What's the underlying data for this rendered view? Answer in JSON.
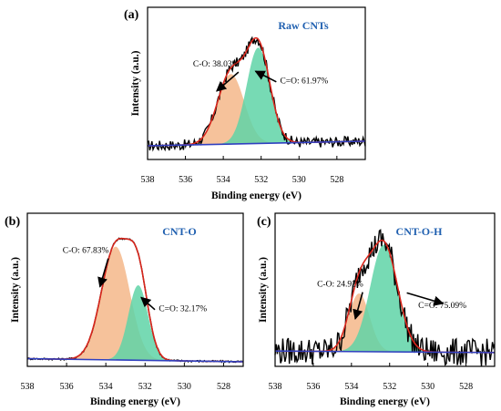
{
  "chart_data": [
    {
      "type": "line",
      "panel_label": "(a)",
      "title": "Raw CNTs",
      "xlabel": "Binding energy (eV)",
      "ylabel": "Intensity (a.u.)",
      "xlim": [
        538,
        526.5
      ],
      "x_reversed": true,
      "xticks": [
        538,
        536,
        534,
        532,
        530,
        528
      ],
      "grid": false,
      "colors": {
        "title": "#2060b0",
        "raw": "#000000",
        "fit": "#d9261c",
        "c_o_peak": "#f5b78a",
        "c_eq_o_peak": "#5fd3a7",
        "baseline": "#3040c0"
      },
      "baseline": {
        "x": [
          538,
          526.5
        ],
        "y": [
          0.09,
          0.12
        ]
      },
      "peaks": [
        {
          "label": "C-O: 38.03%",
          "center": 533.6,
          "sigma": 0.7,
          "height": 0.46
        },
        {
          "label": "C=O: 61.97%",
          "center": 532.15,
          "sigma": 0.62,
          "height": 0.63
        }
      ],
      "noise": 0.035,
      "annotations": [
        {
          "text": "C-O: 38.03%",
          "at": [
            535.6,
            0.61
          ],
          "arrow_to": [
            534.35,
            0.45
          ]
        },
        {
          "text": "C=O: 61.97%",
          "at": [
            531.0,
            0.5
          ],
          "arrow_from": [
            531.2,
            0.51
          ],
          "arrow_to": [
            532.3,
            0.58
          ]
        }
      ]
    },
    {
      "type": "line",
      "panel_label": "(b)",
      "title": "CNT-O",
      "xlabel": "Binding energy (eV)",
      "ylabel": "Intensity (a.u.)",
      "xlim": [
        538,
        527
      ],
      "x_reversed": true,
      "xticks": [
        538,
        536,
        534,
        532,
        530,
        528
      ],
      "grid": false,
      "colors": {
        "title": "#2060b0",
        "raw": "#000000",
        "fit": "#d9261c",
        "c_o_peak": "#f5b78a",
        "c_eq_o_peak": "#5fd3a7",
        "baseline": "#3040c0"
      },
      "baseline": {
        "x": [
          538,
          527
        ],
        "y": [
          0.05,
          0.03
        ]
      },
      "peaks": [
        {
          "label": "C-O: 67.83%",
          "center": 533.5,
          "sigma": 0.72,
          "height": 0.74
        },
        {
          "label": "C=O: 32.17%",
          "center": 532.35,
          "sigma": 0.5,
          "height": 0.49
        }
      ],
      "noise": 0.006,
      "annotations": [
        {
          "text": "C-O: 67.83%",
          "at": [
            536.2,
            0.74
          ],
          "arrow_to": [
            534.3,
            0.52
          ]
        },
        {
          "text": "C=O: 32.17%",
          "at": [
            531.3,
            0.36
          ],
          "arrow_from": [
            531.5,
            0.37
          ],
          "arrow_to": [
            532.2,
            0.45
          ]
        }
      ]
    },
    {
      "type": "line",
      "panel_label": "(c)",
      "title": "CNT-O-H",
      "xlabel": "Binding energy (eV)",
      "ylabel": "Intensity (a.u.)",
      "xlim": [
        538,
        526.5
      ],
      "x_reversed": true,
      "xticks": [
        538,
        536,
        534,
        532,
        530,
        528
      ],
      "grid": false,
      "colors": {
        "title": "#2060b0",
        "raw": "#000000",
        "fit": "#d9261c",
        "c_o_peak": "#f5b78a",
        "c_eq_o_peak": "#5fd3a7",
        "baseline": "#3040c0"
      },
      "baseline": {
        "x": [
          538,
          526.5
        ],
        "y": [
          0.1,
          0.09
        ]
      },
      "peaks": [
        {
          "label": "C-O: 24.92%",
          "center": 533.6,
          "sigma": 0.55,
          "height": 0.38
        },
        {
          "label": "C=O: 75.09%",
          "center": 532.3,
          "sigma": 0.72,
          "height": 0.7
        }
      ],
      "noise": 0.09,
      "annotations": [
        {
          "text": "C-O: 24.92%",
          "at": [
            535.8,
            0.52
          ],
          "arrow_to": [
            533.8,
            0.31
          ]
        },
        {
          "text": "C=O: 75.09%",
          "at": [
            530.5,
            0.38
          ],
          "arrow_from": [
            531.1,
            0.48
          ],
          "arrow_to": [
            529.2,
            0.41
          ]
        }
      ]
    }
  ]
}
